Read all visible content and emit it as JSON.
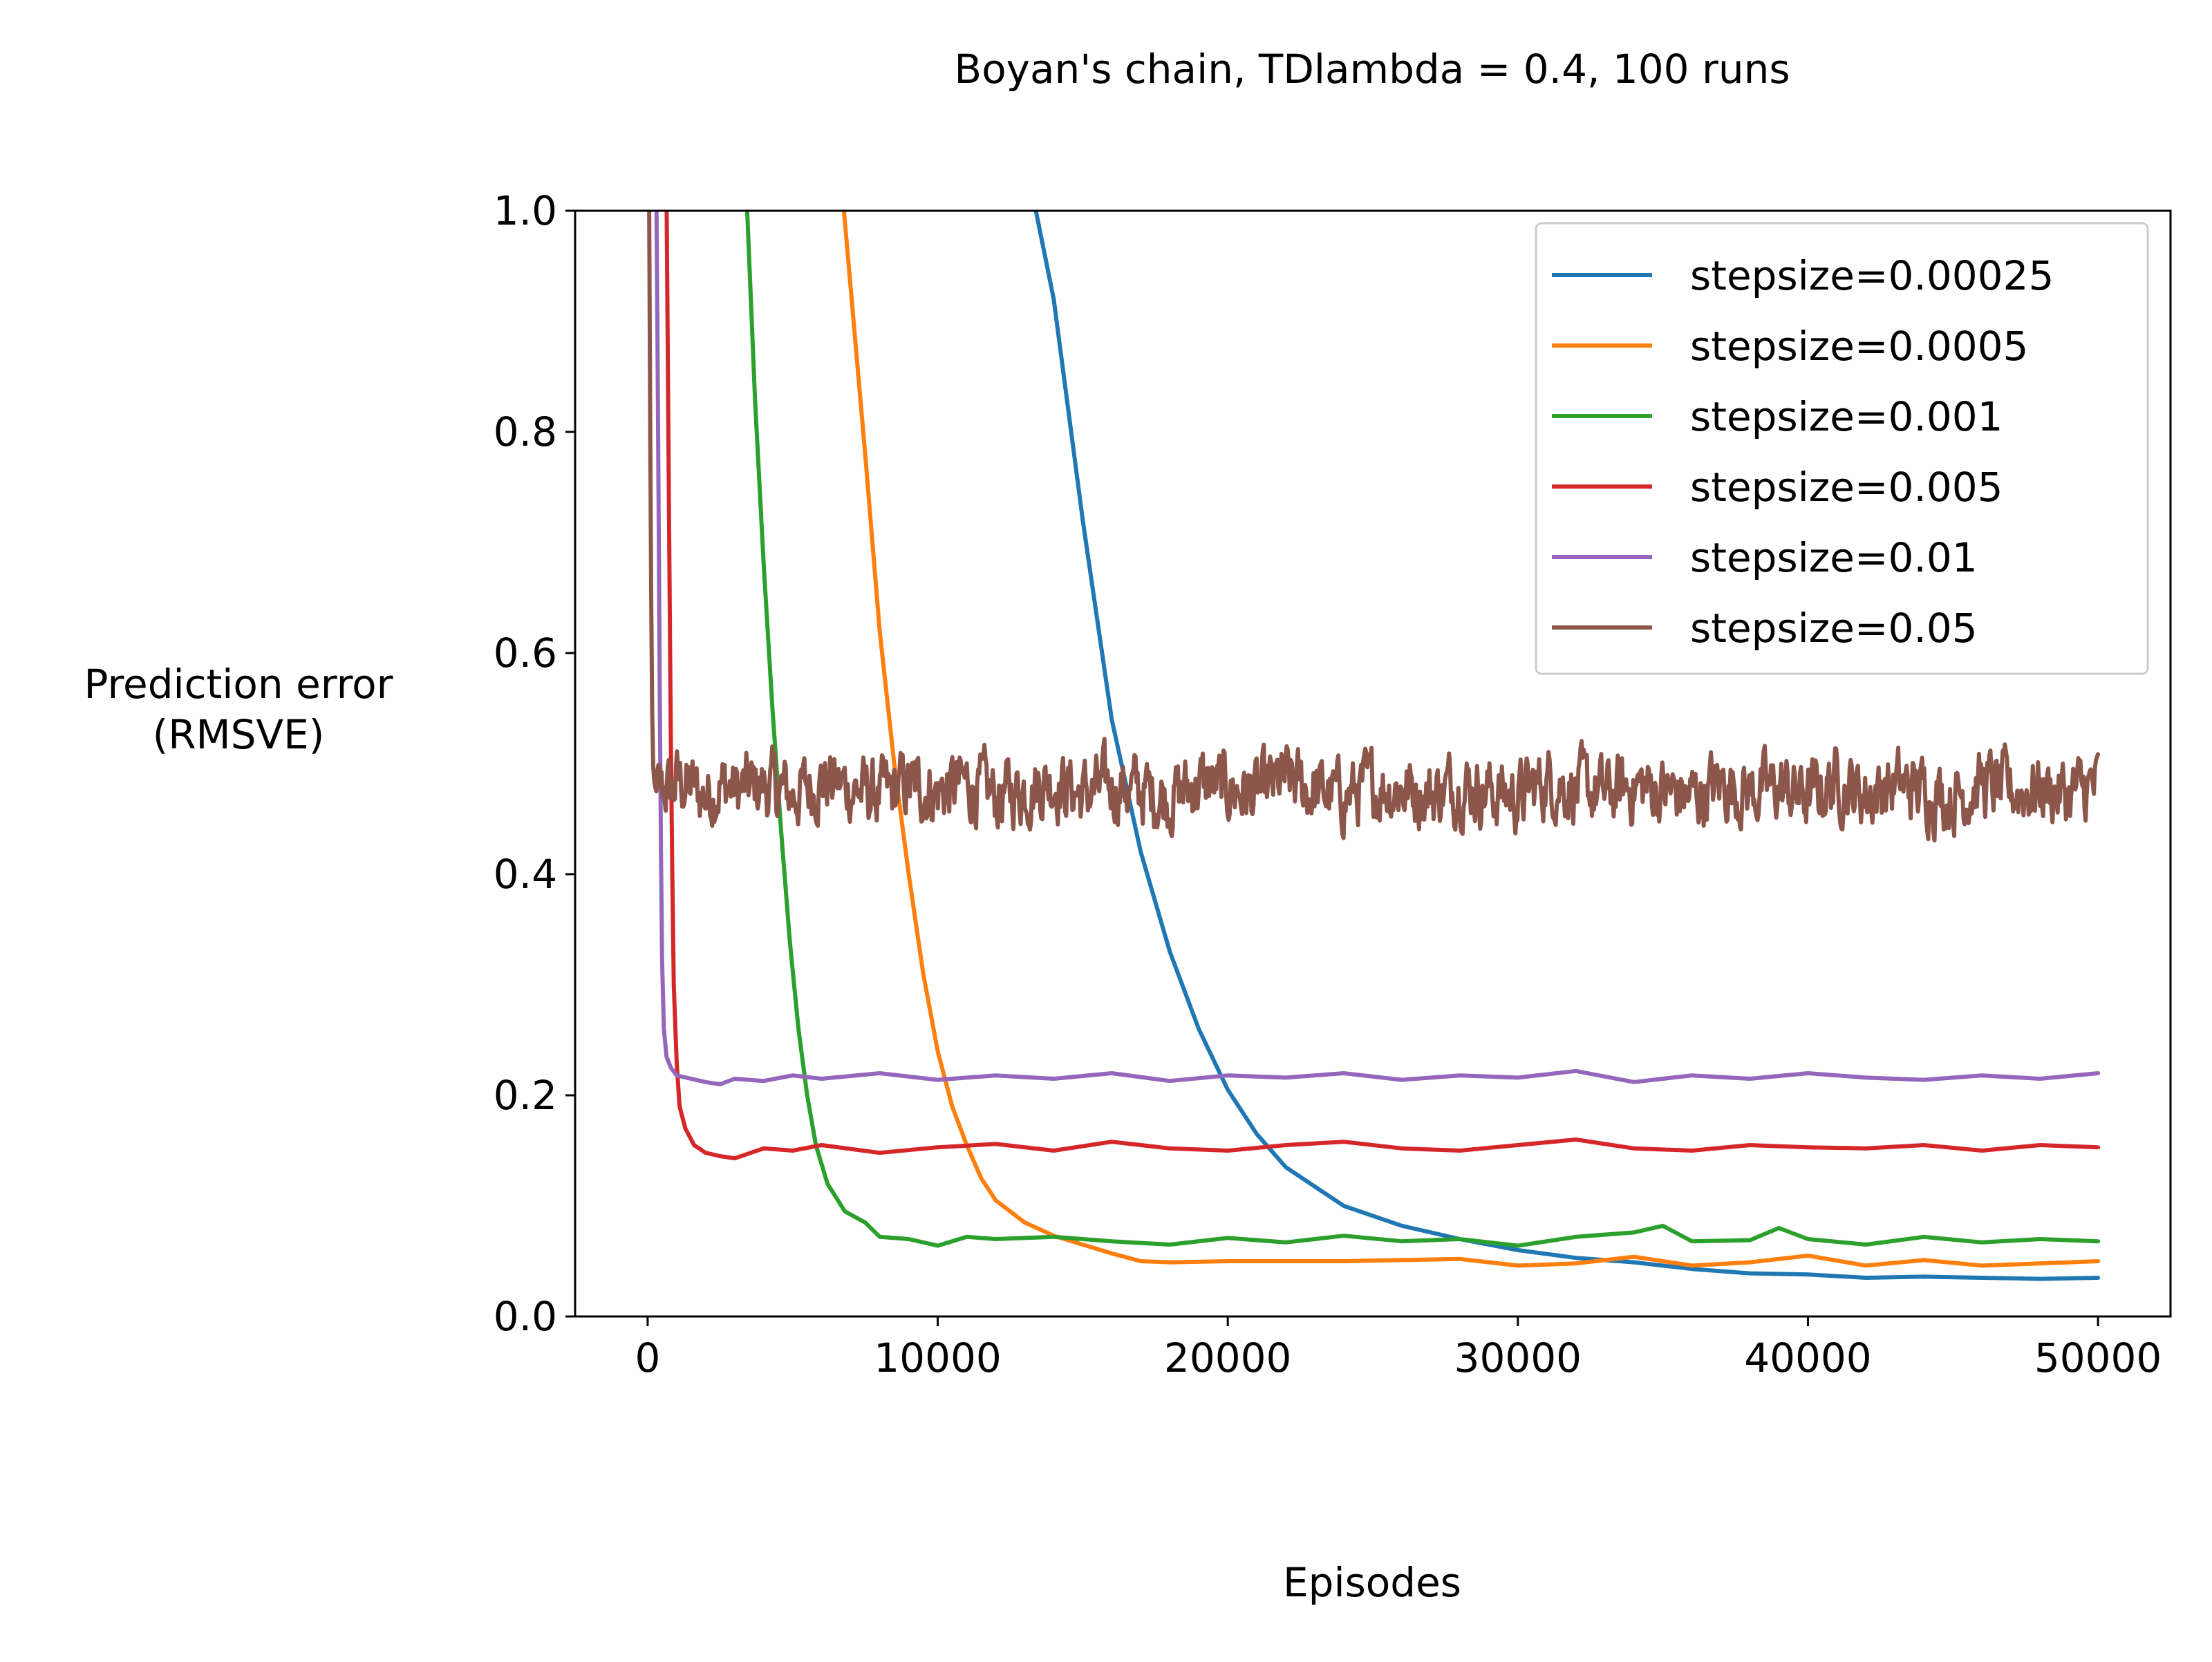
{
  "chart_data": {
    "type": "line",
    "title": "Boyan's chain, TDlambda = 0.4, 100 runs",
    "xlabel": "Episodes",
    "ylabel_lines": [
      "Prediction error",
      "(RMSVE)"
    ],
    "xlim": [
      -2500,
      52500
    ],
    "ylim": [
      0.0,
      1.0
    ],
    "xticks": [
      0,
      10000,
      20000,
      30000,
      40000,
      50000
    ],
    "xtick_labels": [
      "0",
      "10000",
      "20000",
      "30000",
      "40000",
      "50000"
    ],
    "yticks": [
      0.0,
      0.2,
      0.4,
      0.6,
      0.8,
      1.0
    ],
    "ytick_labels": [
      "0.0",
      "0.2",
      "0.4",
      "0.6",
      "0.8",
      "1.0"
    ],
    "grid": false,
    "legend_position": "top-right",
    "series": [
      {
        "name": "stepsize=0.00025",
        "color": "#1f77b4",
        "x": [
          13000,
          14000,
          15000,
          16000,
          17000,
          18000,
          19000,
          20000,
          21000,
          22000,
          24000,
          26000,
          28000,
          30000,
          32000,
          34000,
          36000,
          38000,
          40000,
          42000,
          44000,
          46000,
          48000,
          50000
        ],
        "y": [
          1.05,
          0.92,
          0.72,
          0.54,
          0.42,
          0.33,
          0.26,
          0.205,
          0.165,
          0.135,
          0.1,
          0.082,
          0.07,
          0.06,
          0.053,
          0.049,
          0.043,
          0.039,
          0.038,
          0.035,
          0.036,
          0.035,
          0.034,
          0.035
        ]
      },
      {
        "name": "stepsize=0.0005",
        "color": "#ff7f0e",
        "x": [
          6700,
          7500,
          8000,
          8500,
          9000,
          9500,
          10000,
          10500,
          11000,
          11500,
          12000,
          13000,
          14000,
          15000,
          16000,
          17000,
          18000,
          20000,
          24000,
          28000,
          30000,
          32000,
          34000,
          36000,
          38000,
          40000,
          42000,
          44000,
          46000,
          48000,
          50000
        ],
        "y": [
          1.02,
          0.78,
          0.62,
          0.5,
          0.4,
          0.31,
          0.24,
          0.19,
          0.155,
          0.125,
          0.105,
          0.085,
          0.073,
          0.065,
          0.057,
          0.05,
          0.049,
          0.05,
          0.05,
          0.052,
          0.046,
          0.048,
          0.054,
          0.046,
          0.049,
          0.055,
          0.046,
          0.051,
          0.046,
          0.048,
          0.05
        ]
      },
      {
        "name": "stepsize=0.001",
        "color": "#2ca02c",
        "x": [
          3400,
          3700,
          4000,
          4300,
          4600,
          4900,
          5200,
          5500,
          5800,
          6200,
          6800,
          7500,
          8000,
          9000,
          10000,
          11000,
          12000,
          14000,
          16000,
          18000,
          20000,
          22000,
          24000,
          26000,
          28000,
          30000,
          32000,
          34000,
          35000,
          36000,
          38000,
          39000,
          40000,
          42000,
          44000,
          46000,
          48000,
          50000
        ],
        "y": [
          1.02,
          0.83,
          0.68,
          0.55,
          0.44,
          0.34,
          0.26,
          0.2,
          0.155,
          0.12,
          0.095,
          0.085,
          0.072,
          0.07,
          0.064,
          0.072,
          0.07,
          0.072,
          0.068,
          0.065,
          0.071,
          0.067,
          0.073,
          0.068,
          0.07,
          0.064,
          0.072,
          0.076,
          0.082,
          0.068,
          0.069,
          0.08,
          0.07,
          0.065,
          0.072,
          0.067,
          0.07,
          0.068
        ]
      },
      {
        "name": "stepsize=0.005",
        "color": "#d62728",
        "x": [
          650,
          700,
          750,
          800,
          850,
          900,
          1000,
          1100,
          1300,
          1600,
          2000,
          2500,
          3000,
          4000,
          5000,
          6000,
          8000,
          10000,
          12000,
          14000,
          16000,
          18000,
          20000,
          22000,
          24000,
          26000,
          28000,
          30000,
          32000,
          34000,
          36000,
          38000,
          40000,
          42000,
          44000,
          46000,
          48000,
          50000
        ],
        "y": [
          1.02,
          0.85,
          0.68,
          0.52,
          0.4,
          0.3,
          0.23,
          0.19,
          0.17,
          0.155,
          0.148,
          0.145,
          0.143,
          0.152,
          0.15,
          0.155,
          0.148,
          0.153,
          0.156,
          0.15,
          0.158,
          0.152,
          0.15,
          0.155,
          0.158,
          0.152,
          0.15,
          0.155,
          0.16,
          0.152,
          0.15,
          0.155,
          0.153,
          0.152,
          0.155,
          0.15,
          0.155,
          0.153
        ]
      },
      {
        "name": "stepsize=0.01",
        "color": "#9467bd",
        "x": [
          300,
          340,
          380,
          420,
          460,
          500,
          560,
          650,
          800,
          1000,
          1500,
          2000,
          2500,
          3000,
          4000,
          5000,
          6000,
          8000,
          10000,
          12000,
          14000,
          16000,
          18000,
          20000,
          22000,
          24000,
          26000,
          28000,
          30000,
          32000,
          34000,
          36000,
          38000,
          40000,
          42000,
          44000,
          46000,
          48000,
          50000
        ],
        "y": [
          1.02,
          0.88,
          0.72,
          0.56,
          0.42,
          0.32,
          0.26,
          0.235,
          0.225,
          0.218,
          0.215,
          0.212,
          0.21,
          0.215,
          0.213,
          0.218,
          0.215,
          0.22,
          0.214,
          0.218,
          0.215,
          0.22,
          0.213,
          0.218,
          0.216,
          0.22,
          0.214,
          0.218,
          0.216,
          0.222,
          0.212,
          0.218,
          0.215,
          0.22,
          0.216,
          0.214,
          0.218,
          0.215,
          0.22
        ]
      },
      {
        "name": "stepsize=0.05",
        "color": "#8c564b",
        "x": [
          50,
          80,
          110,
          140,
          170,
          200,
          250,
          300,
          400,
          600,
          800,
          1000,
          1500,
          2000,
          2500,
          3000,
          4000,
          5000,
          6000,
          7000,
          8000,
          9000,
          10000,
          11000,
          12000,
          13000,
          14000,
          15000,
          16000,
          17000,
          18000,
          19000,
          20000,
          21000,
          22000,
          23000,
          24000,
          25000,
          26000,
          27000,
          28000,
          29000,
          30000,
          31000,
          32000,
          33000,
          34000,
          35000,
          36000,
          37000,
          38000,
          39000,
          40000,
          41000,
          42000,
          43000,
          44000,
          45000,
          46000,
          47000,
          48000,
          49000,
          50000
        ],
        "y": [
          1.02,
          0.85,
          0.7,
          0.58,
          0.52,
          0.49,
          0.48,
          0.475,
          0.47,
          0.48,
          0.472,
          0.485,
          0.478,
          0.47,
          0.482,
          0.475,
          0.48,
          0.472,
          0.485,
          0.478,
          0.47,
          0.48,
          0.475,
          0.482,
          0.47,
          0.478,
          0.485,
          0.472,
          0.48,
          0.475,
          0.47,
          0.482,
          0.478,
          0.472,
          0.485,
          0.475,
          0.47,
          0.48,
          0.478,
          0.472,
          0.482,
          0.475,
          0.47,
          0.485,
          0.478,
          0.472,
          0.48,
          0.476,
          0.47,
          0.482,
          0.475,
          0.478,
          0.47,
          0.485,
          0.472,
          0.48,
          0.476,
          0.47,
          0.482,
          0.475,
          0.478,
          0.472,
          0.48
        ],
        "noise_amplitude": 0.035
      }
    ]
  }
}
